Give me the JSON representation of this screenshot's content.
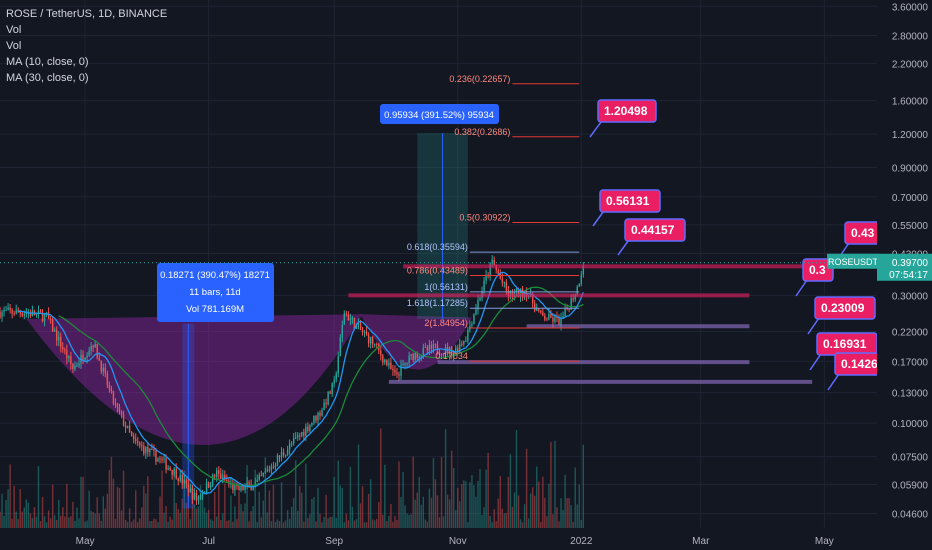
{
  "header": {
    "title": "ROSE / TetherUS, 1D, BINANCE",
    "indicators": [
      "Vol",
      "Vol",
      "MA (10, close, 0)",
      "MA (30, close, 0)"
    ]
  },
  "colors": {
    "background": "#131722",
    "up": "#26a69a",
    "down": "#ef5350",
    "ma_fast": "#2196f3",
    "ma_slow": "#1b8a3a",
    "cup": "#9c27b0",
    "fib": "#e53935",
    "callout": "#e91e63",
    "support": "#9575cd",
    "measure": "#2962ff"
  },
  "chart_data": {
    "type": "candlestick",
    "symbol": "ROSEUSDT",
    "interval": "1D",
    "exchange": "BINANCE",
    "y_scale": "log",
    "ylim": [
      0.0435,
      3.8
    ],
    "y_ticks": [
      "3.60000",
      "2.80000",
      "2.20000",
      "1.60000",
      "1.20000",
      "0.90000",
      "0.70000",
      "0.55000",
      "0.43000",
      "0.30000",
      "0.22000",
      "0.17000",
      "0.13000",
      "0.10000",
      "0.07500",
      "0.05900",
      "0.04600"
    ],
    "x_ticks": [
      "May",
      "Jul",
      "Sep",
      "Nov",
      "2022",
      "Mar",
      "May"
    ],
    "x_tick_dates": [
      "2021-05-01",
      "2021-07-01",
      "2021-09-01",
      "2021-11-01",
      "2022-01-01",
      "2022-03-01",
      "2022-05-01"
    ],
    "x_range": [
      "2021-03-20",
      "2022-05-27"
    ],
    "last_price": {
      "label": "ROSEUSDT",
      "value": "0.39700",
      "countdown": "07:54:17"
    },
    "price_path": [
      {
        "date": "2021-03-20",
        "price": 0.26
      },
      {
        "date": "2021-04-01",
        "price": 0.26
      },
      {
        "date": "2021-04-12",
        "price": 0.25
      },
      {
        "date": "2021-04-25",
        "price": 0.16
      },
      {
        "date": "2021-05-05",
        "price": 0.2
      },
      {
        "date": "2021-05-15",
        "price": 0.12
      },
      {
        "date": "2021-05-25",
        "price": 0.085
      },
      {
        "date": "2021-06-05",
        "price": 0.075
      },
      {
        "date": "2021-06-15",
        "price": 0.065
      },
      {
        "date": "2021-06-25",
        "price": 0.052
      },
      {
        "date": "2021-07-05",
        "price": 0.065
      },
      {
        "date": "2021-07-15",
        "price": 0.056
      },
      {
        "date": "2021-07-25",
        "price": 0.06
      },
      {
        "date": "2021-08-05",
        "price": 0.075
      },
      {
        "date": "2021-08-15",
        "price": 0.09
      },
      {
        "date": "2021-08-25",
        "price": 0.11
      },
      {
        "date": "2021-09-01",
        "price": 0.14
      },
      {
        "date": "2021-09-06",
        "price": 0.26
      },
      {
        "date": "2021-09-12",
        "price": 0.23
      },
      {
        "date": "2021-09-20",
        "price": 0.2
      },
      {
        "date": "2021-10-01",
        "price": 0.15
      },
      {
        "date": "2021-10-10",
        "price": 0.18
      },
      {
        "date": "2021-10-20",
        "price": 0.19
      },
      {
        "date": "2021-10-30",
        "price": 0.185
      },
      {
        "date": "2021-11-05",
        "price": 0.21
      },
      {
        "date": "2021-11-12",
        "price": 0.3
      },
      {
        "date": "2021-11-18",
        "price": 0.4
      },
      {
        "date": "2021-11-26",
        "price": 0.3
      },
      {
        "date": "2021-12-05",
        "price": 0.31
      },
      {
        "date": "2021-12-12",
        "price": 0.25
      },
      {
        "date": "2021-12-22",
        "price": 0.24
      },
      {
        "date": "2021-12-30",
        "price": 0.32
      },
      {
        "date": "2022-01-02",
        "price": 0.397
      }
    ],
    "fib_levels": [
      {
        "label": "0.236(0.22657)",
        "ratio": 0.236,
        "value": 0.22657
      },
      {
        "label": "0.382(0.2686)",
        "ratio": 0.382,
        "value": 0.2686
      },
      {
        "label": "0.5(0.30922)",
        "ratio": 0.5,
        "value": 0.30922
      },
      {
        "label": "0.618(0.35594)",
        "ratio": 0.618,
        "value": 0.35594
      },
      {
        "label": "0.786(0.43489)",
        "ratio": 0.786,
        "value": 0.43489
      },
      {
        "label": "1(0.56131)",
        "ratio": 1,
        "value": 0.56131
      },
      {
        "label": "1.618(1.17285)",
        "ratio": 1.618,
        "value": 1.17285
      },
      {
        "label": "2(1.84954)",
        "ratio": 2,
        "value": 1.84954
      },
      {
        "label": "0.17034",
        "ratio": 0,
        "value": 0.17034
      }
    ],
    "fib_label_shown": [
      "2(1.84954)",
      "1.618(1.17285)",
      "1(0.56131)",
      "0.786(0.43489)",
      "0.618(0.35594)",
      "0.5(0.30922)",
      "0.382(0.2686)",
      "0.236(0.22657)",
      "0.17034"
    ],
    "target_callouts": [
      {
        "text": "1.20498",
        "value": 1.20498
      },
      {
        "text": "0.56131",
        "value": 0.56131
      },
      {
        "text": "0.44157",
        "value": 0.44157
      },
      {
        "text": "0.43",
        "value": 0.43
      },
      {
        "text": "0.3",
        "value": 0.3
      },
      {
        "text": "0.23009",
        "value": 0.23009
      },
      {
        "text": "0.16931",
        "value": 0.16931
      },
      {
        "text": "0.1426",
        "value": 0.1426
      }
    ],
    "measure_boxes": [
      {
        "lines": [
          "0.18271 (390.47%) 18271",
          "11 bars, 11d",
          "Vol 781.169M"
        ]
      },
      {
        "lines": [
          "0.95934 (391.52%) 95934"
        ]
      }
    ]
  }
}
